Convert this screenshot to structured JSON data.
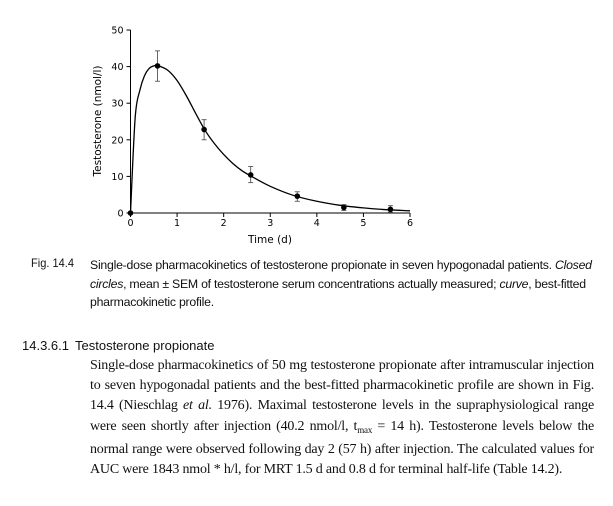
{
  "chart_data": {
    "type": "line",
    "title": "",
    "xlabel": "Time (d)",
    "ylabel": "Testosterone (nmol/l)",
    "xlim": [
      0,
      6
    ],
    "ylim": [
      0,
      50
    ],
    "xticks": [
      0,
      1,
      2,
      3,
      4,
      5,
      6
    ],
    "yticks": [
      0,
      10,
      20,
      30,
      40,
      50
    ],
    "grid": false,
    "series": [
      {
        "name": "Closed circles, mean ± SEM measured",
        "type": "scatter",
        "x": [
          0,
          0.58,
          1.58,
          2.58,
          3.58,
          4.58,
          5.58
        ],
        "y": [
          0,
          40.2,
          22.8,
          10.4,
          4.6,
          1.5,
          1.0
        ],
        "err_low": [
          0,
          36.0,
          20.0,
          8.3,
          3.2,
          0.7,
          0.2
        ],
        "err_high": [
          0,
          44.3,
          25.5,
          12.7,
          5.8,
          2.3,
          2.0
        ]
      },
      {
        "name": "Best-fitted pharmacokinetic profile",
        "type": "line",
        "x": [
          0,
          0.1,
          0.2,
          0.3,
          0.4,
          0.5,
          0.6,
          0.8,
          1.0,
          1.2,
          1.4,
          1.6,
          1.8,
          2.0,
          2.2,
          2.4,
          2.6,
          3.0,
          3.5,
          4.0,
          4.5,
          5.0,
          5.5,
          6.0
        ],
        "y": [
          0,
          26,
          33.5,
          37.5,
          39.5,
          40.2,
          40.2,
          39.0,
          36.2,
          32.0,
          27.2,
          22.6,
          19.0,
          16.0,
          13.5,
          11.5,
          10.0,
          7.3,
          4.8,
          3.2,
          2.1,
          1.4,
          0.9,
          0.6
        ]
      }
    ]
  },
  "caption": {
    "label": "Fig. 14.4",
    "text_1": "Single-dose pharmacokinetics of testosterone propionate in seven hypogonadal patients. ",
    "italic_1": "Closed circles",
    "text_2": ", mean ± SEM of testosterone serum concentrations actually measured; ",
    "italic_2": "curve",
    "text_3": ", best-fitted pharmacokinetic profile."
  },
  "section": {
    "number": "14.3.6.1",
    "title": "Testosterone propionate"
  },
  "body": {
    "p1": "Single-dose pharmacokinetics of 50 mg testosterone propionate after intramuscular injection to seven hypogonadal patients and the best-fitted pharmacokinetic profile are shown in Fig. 14.4 (Nieschlag ",
    "etal": "et al.",
    "p2": " 1976). Maximal testosterone levels in the supraphysiological range were seen shortly after injection (40.2 nmol/l, t",
    "sub": "max",
    "p3": " = 14 h). Testosterone levels below the normal range were observed following day 2 (57 h) after injection. The calculated values for AUC were 1843 nmol * h/l, for MRT 1.5 d and 0.8 d for terminal half-life (Table 14.2)."
  }
}
